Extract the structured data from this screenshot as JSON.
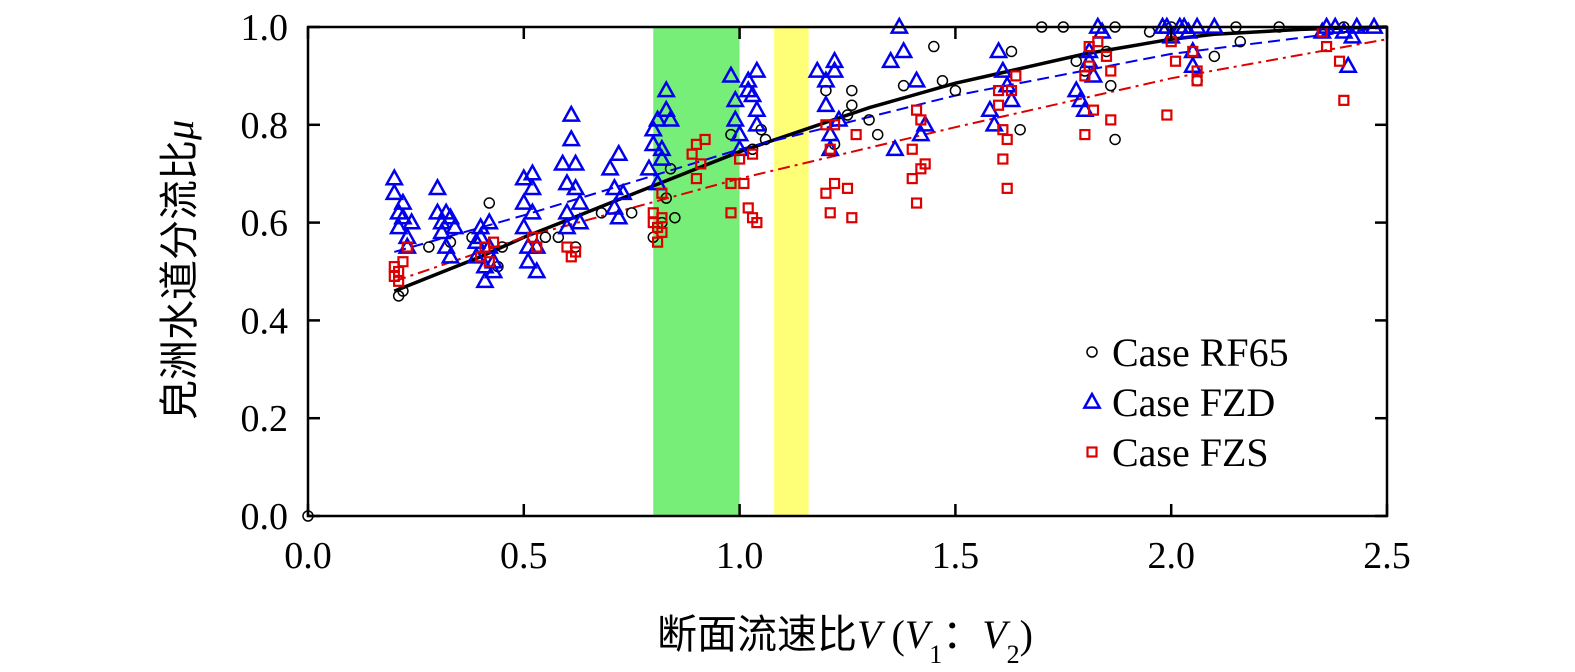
{
  "chart_data": {
    "type": "scatter",
    "xlabel_cn": "断面流速比",
    "xlabel_var": "V",
    "xlabel_v1": "V",
    "xlabel_v1_sub": "1",
    "xlabel_colon": "：",
    "xlabel_v2": "V",
    "xlabel_v2_sub": "2",
    "ylabel_cn": "皃洲水道分流比",
    "ylabel_var": "μ",
    "xlim": [
      0.0,
      2.5
    ],
    "ylim": [
      0.0,
      1.0
    ],
    "x_ticks": [
      "0.0",
      "0.5",
      "1.0",
      "1.5",
      "2.0",
      "2.5"
    ],
    "y_ticks": [
      "0.0",
      "0.2",
      "0.4",
      "0.6",
      "0.8",
      "1.0"
    ],
    "grid": false,
    "legend_position": "lower-right",
    "shaded_bands": [
      {
        "x_range": [
          0.8,
          1.0
        ],
        "color": "#77ee77"
      },
      {
        "x_range": [
          1.08,
          1.16
        ],
        "color": "#ffff77"
      }
    ],
    "series": [
      {
        "name": "Case RF65",
        "marker": "circle",
        "color": "#000000",
        "points": [
          [
            0.0,
            0.0
          ],
          [
            0.21,
            0.45
          ],
          [
            0.22,
            0.46
          ],
          [
            0.28,
            0.55
          ],
          [
            0.33,
            0.56
          ],
          [
            0.38,
            0.57
          ],
          [
            0.42,
            0.64
          ],
          [
            0.44,
            0.51
          ],
          [
            0.45,
            0.55
          ],
          [
            0.55,
            0.57
          ],
          [
            0.58,
            0.57
          ],
          [
            0.62,
            0.55
          ],
          [
            0.68,
            0.62
          ],
          [
            0.75,
            0.62
          ],
          [
            0.8,
            0.57
          ],
          [
            0.82,
            0.6
          ],
          [
            0.83,
            0.65
          ],
          [
            0.84,
            0.71
          ],
          [
            0.85,
            0.61
          ],
          [
            0.98,
            0.78
          ],
          [
            1.03,
            0.75
          ],
          [
            1.05,
            0.79
          ],
          [
            1.06,
            0.77
          ],
          [
            1.2,
            0.87
          ],
          [
            1.22,
            0.76
          ],
          [
            1.25,
            0.82
          ],
          [
            1.26,
            0.87
          ],
          [
            1.26,
            0.84
          ],
          [
            1.3,
            0.81
          ],
          [
            1.32,
            0.78
          ],
          [
            1.38,
            0.88
          ],
          [
            1.45,
            0.96
          ],
          [
            1.47,
            0.89
          ],
          [
            1.5,
            0.87
          ],
          [
            1.63,
            0.95
          ],
          [
            1.65,
            0.79
          ],
          [
            1.7,
            1.0
          ],
          [
            1.75,
            1.0
          ],
          [
            1.78,
            0.93
          ],
          [
            1.8,
            0.91
          ],
          [
            1.85,
            0.95
          ],
          [
            1.86,
            0.88
          ],
          [
            1.87,
            0.77
          ],
          [
            1.87,
            1.0
          ],
          [
            1.95,
            0.99
          ],
          [
            2.0,
            1.0
          ],
          [
            2.06,
            0.89
          ],
          [
            2.1,
            0.94
          ],
          [
            2.15,
            1.0
          ],
          [
            2.16,
            0.97
          ],
          [
            2.25,
            1.0
          ],
          [
            2.4,
            1.0
          ]
        ]
      },
      {
        "name": "Case FZD",
        "marker": "triangle",
        "color": "#0000ee",
        "points": [
          [
            0.2,
            0.69
          ],
          [
            0.2,
            0.66
          ],
          [
            0.21,
            0.62
          ],
          [
            0.21,
            0.59
          ],
          [
            0.22,
            0.64
          ],
          [
            0.22,
            0.61
          ],
          [
            0.23,
            0.57
          ],
          [
            0.23,
            0.55
          ],
          [
            0.24,
            0.6
          ],
          [
            0.3,
            0.67
          ],
          [
            0.3,
            0.62
          ],
          [
            0.31,
            0.6
          ],
          [
            0.31,
            0.58
          ],
          [
            0.32,
            0.62
          ],
          [
            0.32,
            0.55
          ],
          [
            0.33,
            0.61
          ],
          [
            0.33,
            0.53
          ],
          [
            0.34,
            0.59
          ],
          [
            0.39,
            0.56
          ],
          [
            0.39,
            0.53
          ],
          [
            0.4,
            0.59
          ],
          [
            0.4,
            0.57
          ],
          [
            0.41,
            0.51
          ],
          [
            0.41,
            0.48
          ],
          [
            0.42,
            0.6
          ],
          [
            0.42,
            0.55
          ],
          [
            0.43,
            0.52
          ],
          [
            0.43,
            0.5
          ],
          [
            0.5,
            0.69
          ],
          [
            0.5,
            0.64
          ],
          [
            0.5,
            0.59
          ],
          [
            0.51,
            0.55
          ],
          [
            0.51,
            0.52
          ],
          [
            0.52,
            0.7
          ],
          [
            0.52,
            0.67
          ],
          [
            0.52,
            0.62
          ],
          [
            0.53,
            0.55
          ],
          [
            0.53,
            0.5
          ],
          [
            0.59,
            0.72
          ],
          [
            0.6,
            0.68
          ],
          [
            0.6,
            0.62
          ],
          [
            0.6,
            0.59
          ],
          [
            0.61,
            0.82
          ],
          [
            0.61,
            0.77
          ],
          [
            0.62,
            0.72
          ],
          [
            0.62,
            0.67
          ],
          [
            0.63,
            0.64
          ],
          [
            0.63,
            0.6
          ],
          [
            0.7,
            0.71
          ],
          [
            0.71,
            0.67
          ],
          [
            0.71,
            0.63
          ],
          [
            0.72,
            0.74
          ],
          [
            0.72,
            0.61
          ],
          [
            0.73,
            0.66
          ],
          [
            0.79,
            0.71
          ],
          [
            0.8,
            0.76
          ],
          [
            0.8,
            0.79
          ],
          [
            0.81,
            0.81
          ],
          [
            0.81,
            0.68
          ],
          [
            0.82,
            0.73
          ],
          [
            0.82,
            0.75
          ],
          [
            0.83,
            0.87
          ],
          [
            0.83,
            0.83
          ],
          [
            0.84,
            0.81
          ],
          [
            0.98,
            0.9
          ],
          [
            0.99,
            0.85
          ],
          [
            0.99,
            0.81
          ],
          [
            1.0,
            0.78
          ],
          [
            1.0,
            0.75
          ],
          [
            1.02,
            0.89
          ],
          [
            1.02,
            0.87
          ],
          [
            1.03,
            0.86
          ],
          [
            1.04,
            0.83
          ],
          [
            1.04,
            0.8
          ],
          [
            1.04,
            0.91
          ],
          [
            1.18,
            0.91
          ],
          [
            1.2,
            0.89
          ],
          [
            1.2,
            0.84
          ],
          [
            1.21,
            0.75
          ],
          [
            1.21,
            0.78
          ],
          [
            1.22,
            0.93
          ],
          [
            1.22,
            0.91
          ],
          [
            1.23,
            0.81
          ],
          [
            1.35,
            0.93
          ],
          [
            1.36,
            0.75
          ],
          [
            1.37,
            1.0
          ],
          [
            1.38,
            0.95
          ],
          [
            1.41,
            0.89
          ],
          [
            1.42,
            0.78
          ],
          [
            1.43,
            0.8
          ],
          [
            1.58,
            0.83
          ],
          [
            1.59,
            0.8
          ],
          [
            1.6,
            0.95
          ],
          [
            1.61,
            0.91
          ],
          [
            1.62,
            0.88
          ],
          [
            1.63,
            0.85
          ],
          [
            1.78,
            0.87
          ],
          [
            1.79,
            0.85
          ],
          [
            1.8,
            0.83
          ],
          [
            1.81,
            0.95
          ],
          [
            1.81,
            0.93
          ],
          [
            1.82,
            0.9
          ],
          [
            1.83,
            1.0
          ],
          [
            1.84,
            0.99
          ],
          [
            1.98,
            1.0
          ],
          [
            1.99,
            1.0
          ],
          [
            2.0,
            0.98
          ],
          [
            2.02,
            1.0
          ],
          [
            2.03,
            1.0
          ],
          [
            2.04,
            0.99
          ],
          [
            2.05,
            0.95
          ],
          [
            2.05,
            0.92
          ],
          [
            2.06,
            1.0
          ],
          [
            2.1,
            1.0
          ],
          [
            2.35,
            0.99
          ],
          [
            2.36,
            1.0
          ],
          [
            2.38,
            1.0
          ],
          [
            2.4,
            0.99
          ],
          [
            2.41,
            0.92
          ],
          [
            2.42,
            0.98
          ],
          [
            2.43,
            1.0
          ],
          [
            2.47,
            1.0
          ]
        ]
      },
      {
        "name": "Case FZS",
        "marker": "square",
        "color": "#dd0000",
        "points": [
          [
            0.2,
            0.51
          ],
          [
            0.2,
            0.49
          ],
          [
            0.21,
            0.48
          ],
          [
            0.21,
            0.5
          ],
          [
            0.22,
            0.52
          ],
          [
            0.23,
            0.55
          ],
          [
            0.4,
            0.53
          ],
          [
            0.41,
            0.55
          ],
          [
            0.42,
            0.52
          ],
          [
            0.43,
            0.56
          ],
          [
            0.52,
            0.57
          ],
          [
            0.53,
            0.55
          ],
          [
            0.6,
            0.55
          ],
          [
            0.61,
            0.53
          ],
          [
            0.62,
            0.54
          ],
          [
            0.8,
            0.6
          ],
          [
            0.8,
            0.62
          ],
          [
            0.81,
            0.59
          ],
          [
            0.81,
            0.56
          ],
          [
            0.82,
            0.58
          ],
          [
            0.82,
            0.61
          ],
          [
            0.82,
            0.66
          ],
          [
            0.89,
            0.74
          ],
          [
            0.9,
            0.69
          ],
          [
            0.9,
            0.76
          ],
          [
            0.91,
            0.72
          ],
          [
            0.92,
            0.77
          ],
          [
            0.98,
            0.62
          ],
          [
            0.98,
            0.68
          ],
          [
            1.0,
            0.73
          ],
          [
            1.01,
            0.68
          ],
          [
            1.02,
            0.63
          ],
          [
            1.03,
            0.61
          ],
          [
            1.04,
            0.6
          ],
          [
            1.03,
            0.74
          ],
          [
            1.2,
            0.66
          ],
          [
            1.2,
            0.8
          ],
          [
            1.21,
            0.75
          ],
          [
            1.21,
            0.62
          ],
          [
            1.22,
            0.68
          ],
          [
            1.22,
            0.8
          ],
          [
            1.25,
            0.67
          ],
          [
            1.26,
            0.61
          ],
          [
            1.27,
            0.78
          ],
          [
            1.4,
            0.75
          ],
          [
            1.4,
            0.69
          ],
          [
            1.41,
            0.83
          ],
          [
            1.41,
            0.64
          ],
          [
            1.42,
            0.71
          ],
          [
            1.42,
            0.81
          ],
          [
            1.43,
            0.72
          ],
          [
            1.6,
            0.84
          ],
          [
            1.6,
            0.87
          ],
          [
            1.61,
            0.79
          ],
          [
            1.61,
            0.73
          ],
          [
            1.62,
            0.67
          ],
          [
            1.62,
            0.77
          ],
          [
            1.63,
            0.87
          ],
          [
            1.64,
            0.9
          ],
          [
            1.8,
            0.78
          ],
          [
            1.8,
            0.9
          ],
          [
            1.81,
            0.96
          ],
          [
            1.81,
            0.92
          ],
          [
            1.82,
            0.83
          ],
          [
            1.83,
            0.97
          ],
          [
            1.85,
            0.94
          ],
          [
            1.86,
            0.81
          ],
          [
            1.86,
            0.91
          ],
          [
            1.99,
            0.82
          ],
          [
            2.0,
            0.97
          ],
          [
            2.01,
            0.93
          ],
          [
            2.05,
            0.95
          ],
          [
            2.06,
            0.89
          ],
          [
            2.06,
            0.91
          ],
          [
            2.35,
            0.99
          ],
          [
            2.36,
            0.96
          ],
          [
            2.39,
            0.93
          ],
          [
            2.4,
            0.85
          ]
        ]
      }
    ],
    "fit_lines": [
      {
        "for": "Case RF65",
        "style": "solid",
        "color": "#000000",
        "x": [
          0.2,
          0.3,
          0.4,
          0.5,
          0.6,
          0.7,
          0.8,
          0.9,
          1.0,
          1.1,
          1.2,
          1.3,
          1.4,
          1.5,
          1.6,
          1.7,
          1.8,
          1.9,
          2.0,
          2.1,
          2.2,
          2.3,
          2.4,
          2.5
        ],
        "y": [
          0.46,
          0.495,
          0.53,
          0.57,
          0.605,
          0.64,
          0.675,
          0.71,
          0.745,
          0.775,
          0.805,
          0.835,
          0.86,
          0.885,
          0.905,
          0.925,
          0.945,
          0.96,
          0.975,
          0.985,
          0.99,
          0.995,
          0.998,
          1.0
        ]
      },
      {
        "for": "Case FZD",
        "style": "dashed",
        "color": "#0000ee",
        "x": [
          0.2,
          0.5,
          1.0,
          1.5,
          2.0,
          2.5
        ],
        "y": [
          0.54,
          0.615,
          0.75,
          0.86,
          0.945,
          1.0
        ]
      },
      {
        "for": "Case FZS",
        "style": "dashdot",
        "color": "#dd0000",
        "x": [
          0.2,
          0.5,
          1.0,
          1.5,
          2.0,
          2.5
        ],
        "y": [
          0.48,
          0.57,
          0.69,
          0.795,
          0.895,
          0.975
        ]
      }
    ]
  }
}
